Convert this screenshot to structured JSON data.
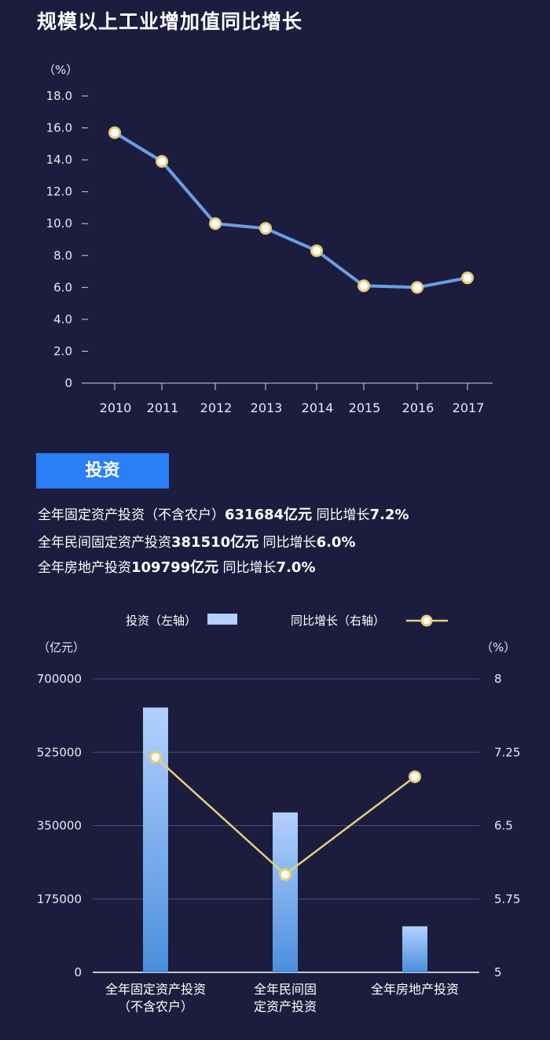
{
  "chart_data": [
    {
      "type": "line",
      "title": "规模以上工业增加值同比增长",
      "unit_label": "（%）",
      "categories": [
        "2010",
        "2011",
        "2012",
        "2013",
        "2014",
        "2015",
        "2016",
        "2017"
      ],
      "values": [
        15.7,
        13.9,
        10.0,
        9.7,
        8.3,
        6.1,
        6.0,
        6.6
      ],
      "y_ticks": [
        "0",
        "2.0",
        "4.0",
        "6.0",
        "8.0",
        "10.0",
        "12.0",
        "14.0",
        "16.0",
        "18.0"
      ],
      "ylim": [
        0,
        18
      ],
      "line_color": "#6b9fe4",
      "marker_color": "#e6cf7d"
    },
    {
      "type": "bar+line",
      "legend": {
        "bar_label": "投资（左轴）",
        "line_label": "同比增长（右轴）"
      },
      "left_unit": "（亿元）",
      "right_unit": "（%）",
      "categories": [
        [
          "全年固定资产投资",
          "（不含农户）"
        ],
        [
          "全年民间固",
          "定资产投资"
        ],
        [
          "全年房地产投资"
        ]
      ],
      "bar_values": [
        631684,
        381510,
        109799
      ],
      "line_values": [
        7.2,
        6.0,
        7.0
      ],
      "left_ticks": [
        "0",
        "175000",
        "350000",
        "525000",
        "700000"
      ],
      "right_ticks": [
        "5",
        "5.75",
        "6.5",
        "7.25",
        "8"
      ],
      "left_lim": [
        0,
        700000
      ],
      "right_lim": [
        5,
        8
      ],
      "bar_color_top": "#b3d0ff",
      "bar_color_bottom": "#4a8fdc",
      "line_color": "#e6cf7d"
    }
  ],
  "section": {
    "title": "投资",
    "stats": [
      {
        "label": "全年固定资产投资（不含农户）",
        "value": "631684亿元",
        "growth_label": " 同比增长",
        "growth": "7.2%"
      },
      {
        "label": "全年民间固定资产投资",
        "value": "381510亿元",
        "growth_label": " 同比增长",
        "growth": "6.0%"
      },
      {
        "label": "全年房地产投资",
        "value": "109799亿元",
        "growth_label": " 同比增长",
        "growth": "7.0%"
      }
    ]
  }
}
